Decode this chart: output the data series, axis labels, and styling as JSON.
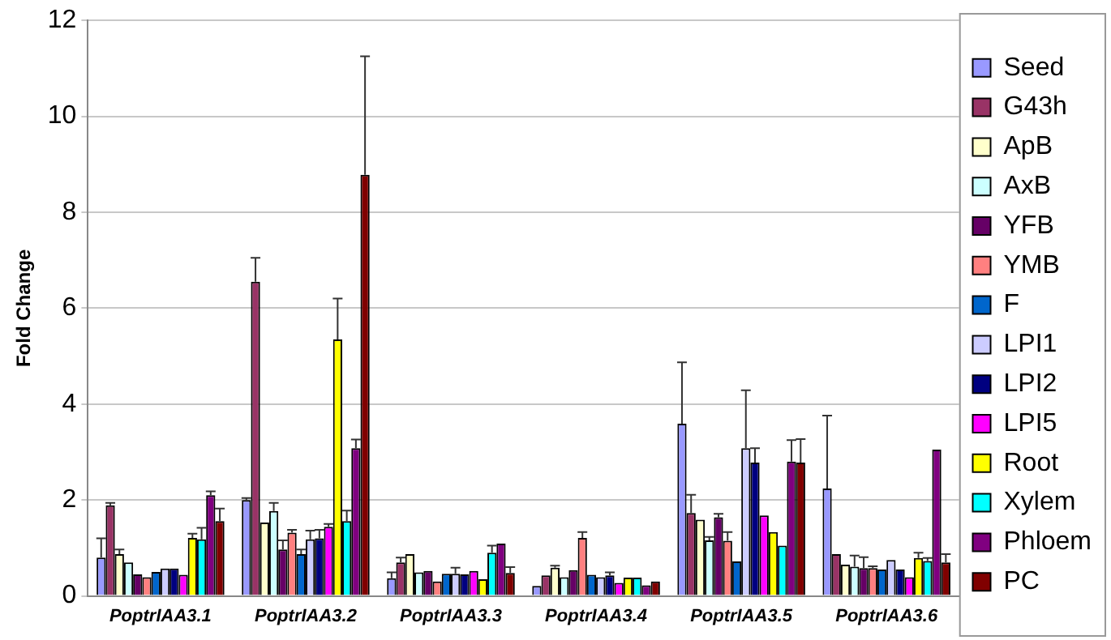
{
  "chart_data": {
    "type": "bar",
    "ylabel": "Fold Change",
    "categories": [
      "PoptrIAA3.1",
      "PoptrIAA3.2",
      "PoptrIAA3.3",
      "PoptrIAA3.4",
      "PoptrIAA3.5",
      "PoptrIAA3.6"
    ],
    "ylim": [
      0,
      12
    ],
    "yticks": [
      0,
      2,
      4,
      6,
      8,
      10,
      12
    ],
    "grid": "y",
    "legend": "right",
    "series": [
      {
        "name": "Seed",
        "color": "#9999ff",
        "values": [
          0.8,
          2.0,
          0.37,
          0.21,
          3.59,
          2.24
        ],
        "errors": [
          [
            0.8,
            1.2
          ],
          [
            2.0,
            2.04
          ],
          [
            0.37,
            0.49
          ],
          null,
          [
            3.59,
            4.87
          ],
          [
            2.24,
            3.76
          ]
        ]
      },
      {
        "name": "G43h",
        "color": "#993366",
        "values": [
          1.89,
          6.55,
          0.7,
          0.43,
          1.73,
          0.87
        ],
        "errors": [
          [
            1.89,
            1.94
          ],
          [
            6.55,
            7.05
          ],
          [
            0.7,
            0.8
          ],
          null,
          [
            1.73,
            2.11
          ],
          null
        ]
      },
      {
        "name": "ApB",
        "color": "#ffffcc",
        "values": [
          0.87,
          1.53,
          0.87,
          0.59,
          1.59,
          0.65
        ],
        "errors": [
          [
            0.87,
            0.97
          ],
          null,
          null,
          [
            0.59,
            0.63
          ],
          null,
          null
        ]
      },
      {
        "name": "AxB",
        "color": "#ccffff",
        "values": [
          0.7,
          1.77,
          0.49,
          0.39,
          1.16,
          0.61
        ],
        "errors": [
          null,
          [
            1.77,
            1.94
          ],
          null,
          null,
          [
            1.16,
            1.23
          ],
          [
            0.61,
            0.84
          ]
        ]
      },
      {
        "name": "YFB",
        "color": "#660066",
        "values": [
          0.45,
          0.97,
          0.52,
          0.54,
          1.64,
          0.58
        ],
        "errors": [
          null,
          [
            0.97,
            1.16
          ],
          null,
          null,
          [
            1.64,
            1.71
          ],
          [
            0.58,
            0.81
          ]
        ]
      },
      {
        "name": "YMB",
        "color": "#ff8080",
        "values": [
          0.39,
          1.32,
          0.3,
          1.21,
          1.15,
          0.58
        ],
        "errors": [
          null,
          [
            1.32,
            1.38
          ],
          null,
          [
            1.21,
            1.33
          ],
          [
            1.15,
            1.33
          ],
          [
            0.58,
            0.62
          ]
        ]
      },
      {
        "name": "F",
        "color": "#0066cc",
        "values": [
          0.5,
          0.87,
          0.46,
          0.44,
          0.72,
          0.55
        ],
        "errors": [
          null,
          [
            0.87,
            0.97
          ],
          null,
          null,
          null,
          null
        ]
      },
      {
        "name": "LPI1",
        "color": "#ccccff",
        "values": [
          0.57,
          1.18,
          0.46,
          0.39,
          3.08,
          0.75
        ],
        "errors": [
          null,
          [
            1.18,
            1.36
          ],
          [
            0.46,
            0.59
          ],
          null,
          [
            3.08,
            4.29
          ],
          null
        ]
      },
      {
        "name": "LPI2",
        "color": "#000080",
        "values": [
          0.57,
          1.2,
          0.45,
          0.43,
          2.78,
          0.55
        ],
        "errors": [
          null,
          [
            1.2,
            1.38
          ],
          null,
          [
            0.43,
            0.49
          ],
          [
            2.78,
            3.08
          ],
          null
        ]
      },
      {
        "name": "LPI5",
        "color": "#ff00ff",
        "values": [
          0.44,
          1.44,
          0.52,
          0.27,
          1.68,
          0.39
        ],
        "errors": [
          null,
          [
            1.44,
            1.5
          ],
          null,
          null,
          null,
          null
        ]
      },
      {
        "name": "Root",
        "color": "#ffff00",
        "values": [
          1.21,
          5.35,
          0.35,
          0.38,
          1.33,
          0.79
        ],
        "errors": [
          [
            1.21,
            1.3
          ],
          [
            5.35,
            6.2
          ],
          null,
          null,
          null,
          [
            0.79,
            0.9
          ]
        ]
      },
      {
        "name": "Xylem",
        "color": "#00ffff",
        "values": [
          1.18,
          1.56,
          0.9,
          0.38,
          1.05,
          0.73
        ],
        "errors": [
          [
            1.18,
            1.42
          ],
          [
            1.56,
            1.78
          ],
          [
            0.9,
            1.05
          ],
          null,
          null,
          [
            0.73,
            0.79
          ]
        ]
      },
      {
        "name": "Phloem",
        "color": "#800080",
        "values": [
          2.1,
          3.08,
          1.09,
          0.22,
          2.8,
          3.05
        ],
        "errors": [
          [
            2.1,
            2.18
          ],
          [
            3.08,
            3.26
          ],
          null,
          null,
          [
            2.8,
            3.25
          ],
          null
        ]
      },
      {
        "name": "PC",
        "color": "#800000",
        "values": [
          1.56,
          8.78,
          0.48,
          0.3,
          2.78,
          0.7
        ],
        "errors": [
          [
            1.56,
            1.82
          ],
          [
            8.78,
            11.25
          ],
          [
            0.48,
            0.6
          ],
          null,
          [
            2.78,
            3.27
          ],
          [
            0.7,
            0.87
          ]
        ]
      }
    ]
  }
}
